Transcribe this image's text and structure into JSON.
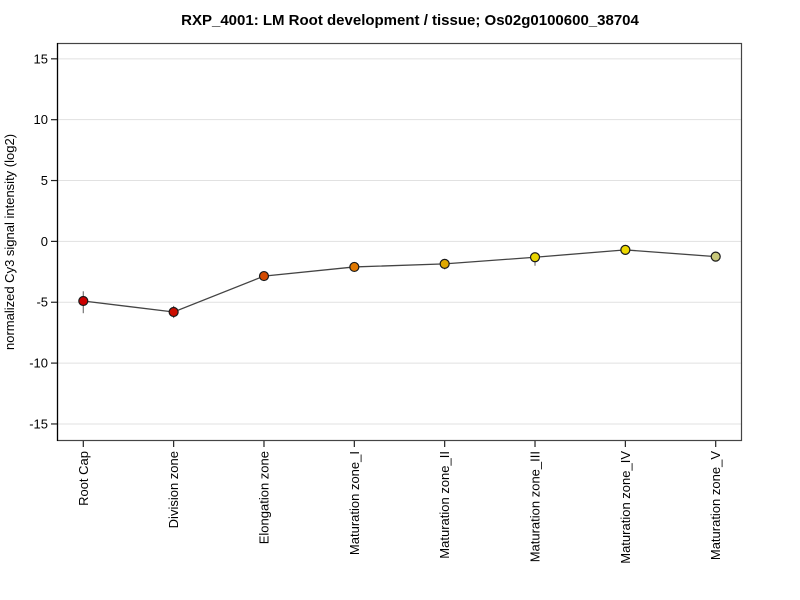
{
  "figure": {
    "background": "#ffffff"
  },
  "chart_data": {
    "type": "line",
    "title": "RXP_4001: LM Root development / tissue; Os02g0100600_38704",
    "xlabel": "",
    "ylabel": "normalized Cy3 signal intensity (log2)",
    "categories": [
      "Root Cap",
      "Division zone",
      "Elongation zone",
      "Maturation zone_I",
      "Maturation zone_II",
      "Maturation zone_III",
      "Maturation zone_IV",
      "Maturation zone_V"
    ],
    "values": [
      -4.9,
      -5.8,
      -2.85,
      -2.1,
      -1.85,
      -1.3,
      -0.7,
      -1.25
    ],
    "error_low": [
      -5.9,
      -6.3,
      -3.1,
      -2.45,
      -2.3,
      -2.0,
      -1.05,
      -1.55
    ],
    "error_high": [
      -4.1,
      -5.3,
      -2.6,
      -1.75,
      -1.5,
      -0.95,
      -0.35,
      -1.0
    ],
    "point_colors": [
      "#cc0000",
      "#cc0e00",
      "#d44a00",
      "#e07800",
      "#e0a800",
      "#e8d400",
      "#ecd800",
      "#c8c87a"
    ],
    "point_stroke": "#1a1a1a",
    "line_color": "#444444",
    "error_bar_color": "#777777",
    "grid": true,
    "grid_color": "#e1e1e1",
    "axis_color": "#444444",
    "tick_color": "#222222",
    "yticks": [
      -15,
      -10,
      -5,
      0,
      5,
      10,
      15
    ],
    "ylim": [
      -16.4,
      16.3
    ],
    "legend": "none"
  }
}
